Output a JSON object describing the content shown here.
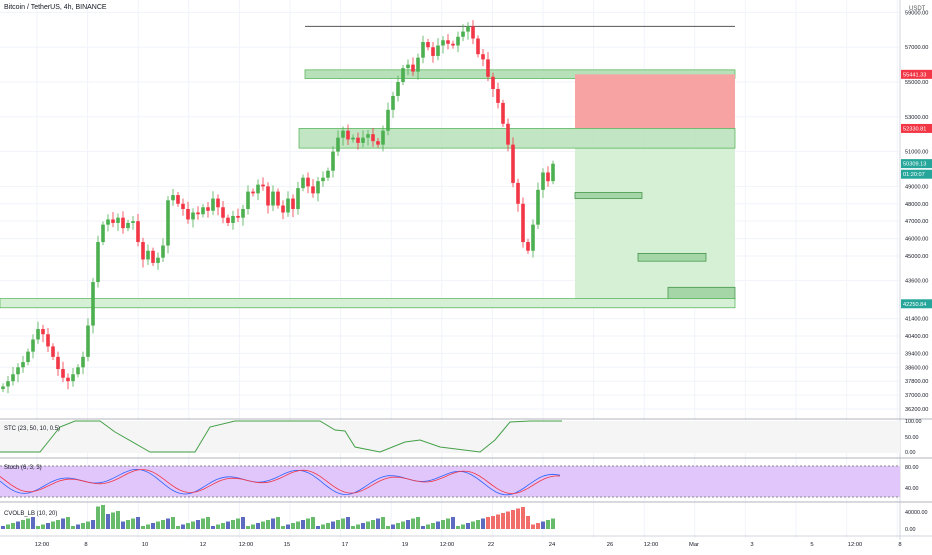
{
  "header": {
    "title": "Bitcoin / TetherUS, 4h, BINANCE",
    "currency": "USDT"
  },
  "price_axis": {
    "ticks": [
      "59000.00",
      "57000.00",
      "55000.00",
      "53000.00",
      "51000.00",
      "49000.00",
      "48000.00",
      "47000.00",
      "46000.00",
      "45000.00",
      "43600.00",
      "41400.00",
      "40400.00",
      "39400.00",
      "38600.00",
      "37800.00",
      "37000.00",
      "36200.00"
    ],
    "labels": [
      {
        "text": "55441.33",
        "price": 55441.33,
        "color": "#f23645"
      },
      {
        "text": "52330.81",
        "price": 52330.81,
        "color": "#f23645"
      },
      {
        "text": "50309.13",
        "price": 50309.13,
        "color": "#26a69a"
      },
      {
        "text": "01:20:07",
        "price": 49700,
        "color": "#26a69a"
      },
      {
        "text": "42250.84",
        "price": 42250.84,
        "color": "#26a69a"
      }
    ]
  },
  "time_axis": {
    "ticks": [
      "12:00",
      "8",
      "10",
      "12",
      "12:00",
      "15",
      "17",
      "19",
      "12:00",
      "22",
      "24",
      "26",
      "12:00",
      "Mar",
      "3",
      "5",
      "12:00",
      "8"
    ]
  },
  "indicators": {
    "stc": {
      "label": "STC (23, 50, 10, 0.5)",
      "ticks": [
        "100.00",
        "50.00",
        "0.00"
      ]
    },
    "stoch": {
      "label": "Stoch (6, 3, 3)",
      "ticks": [
        "80.00",
        "40.00"
      ]
    },
    "cvol": {
      "label": "CVOLB_LB (10, 20)",
      "ticks": [
        "40000.00",
        "0.00"
      ]
    }
  },
  "colors": {
    "up": "#26a69a",
    "up_candle": "#4caf50",
    "down": "#f23645",
    "stop_zone": "#f7a3a3",
    "target_zone": "#d6f0d6",
    "sr_zone": "#b7e1b9",
    "stoch_band": "#e1c6fb"
  },
  "chart_data": {
    "type": "candlestick",
    "title": "Bitcoin / TetherUS, 4h, BINANCE",
    "ylim": [
      35800,
      59600
    ],
    "closes": [
      37500,
      37800,
      38200,
      38600,
      38900,
      39500,
      40200,
      40800,
      40500,
      39800,
      39200,
      38500,
      38000,
      37800,
      38200,
      38600,
      39200,
      41000,
      43500,
      45800,
      46800,
      47100,
      46900,
      47200,
      46600,
      46900,
      47000,
      45800,
      44800,
      45300,
      44600,
      44900,
      45600,
      48200,
      48500,
      48000,
      47700,
      47100,
      47500,
      47400,
      47800,
      47600,
      48300,
      47800,
      47200,
      46900,
      47300,
      47200,
      47700,
      48700,
      48600,
      49100,
      49000,
      47900,
      48700,
      47900,
      47500,
      48300,
      47700,
      48900,
      49500,
      49000,
      48600,
      49300,
      49500,
      49900,
      51000,
      51800,
      52200,
      51700,
      51800,
      51500,
      51800,
      52000,
      51600,
      51400,
      52200,
      53400,
      54200,
      55000,
      55800,
      56000,
      55600,
      56400,
      57300,
      57000,
      56500,
      57100,
      57400,
      57200,
      57100,
      57600,
      57900,
      58200,
      57500,
      56600,
      56300,
      55300,
      54600,
      53800,
      52600,
      51400,
      49200,
      48000,
      45800,
      45300,
      46800,
      48800,
      49800,
      49300,
      50300
    ],
    "levels": {
      "top_line": 58200,
      "stop_zone": [
        53800,
        55441.33
      ],
      "zone_upper": [
        51200,
        52330.81
      ],
      "entry": 51000,
      "target_1": [
        48300,
        48650
      ],
      "target_2": [
        44700,
        45150
      ],
      "target_3": [
        42500,
        43200
      ],
      "zone_lower": [
        42250.84,
        42550
      ]
    }
  }
}
